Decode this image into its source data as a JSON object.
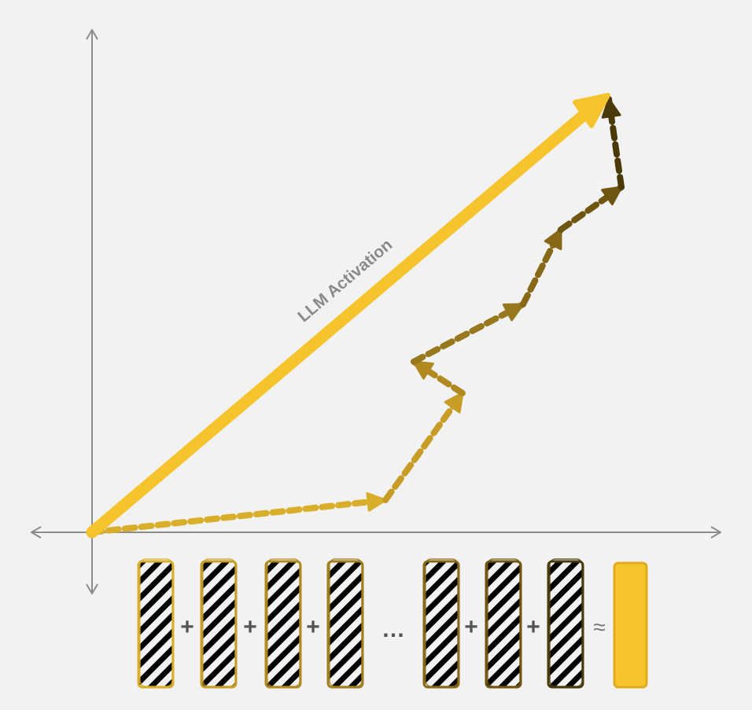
{
  "diagram": {
    "main_arrow_label": "LLM Activation",
    "operator_plus": "+",
    "operator_ellipsis": "…",
    "operator_approx": "≈",
    "colors": {
      "background": "#f2f2f2",
      "axis": "#8c8c8c",
      "main_vector": "#f5c32c",
      "path_segments": [
        "#d9ae2a",
        "#c79d26",
        "#b08a20",
        "#98781c",
        "#866816",
        "#6e5510",
        "#4a3a0a"
      ],
      "features": [
        "#d9ae2a",
        "#c79d26",
        "#b08a20",
        "#9e7e1e",
        "#866816",
        "#6e5510",
        "#4a3a0a"
      ],
      "result_bar": "#f5c32c",
      "operator": "#555555"
    }
  }
}
